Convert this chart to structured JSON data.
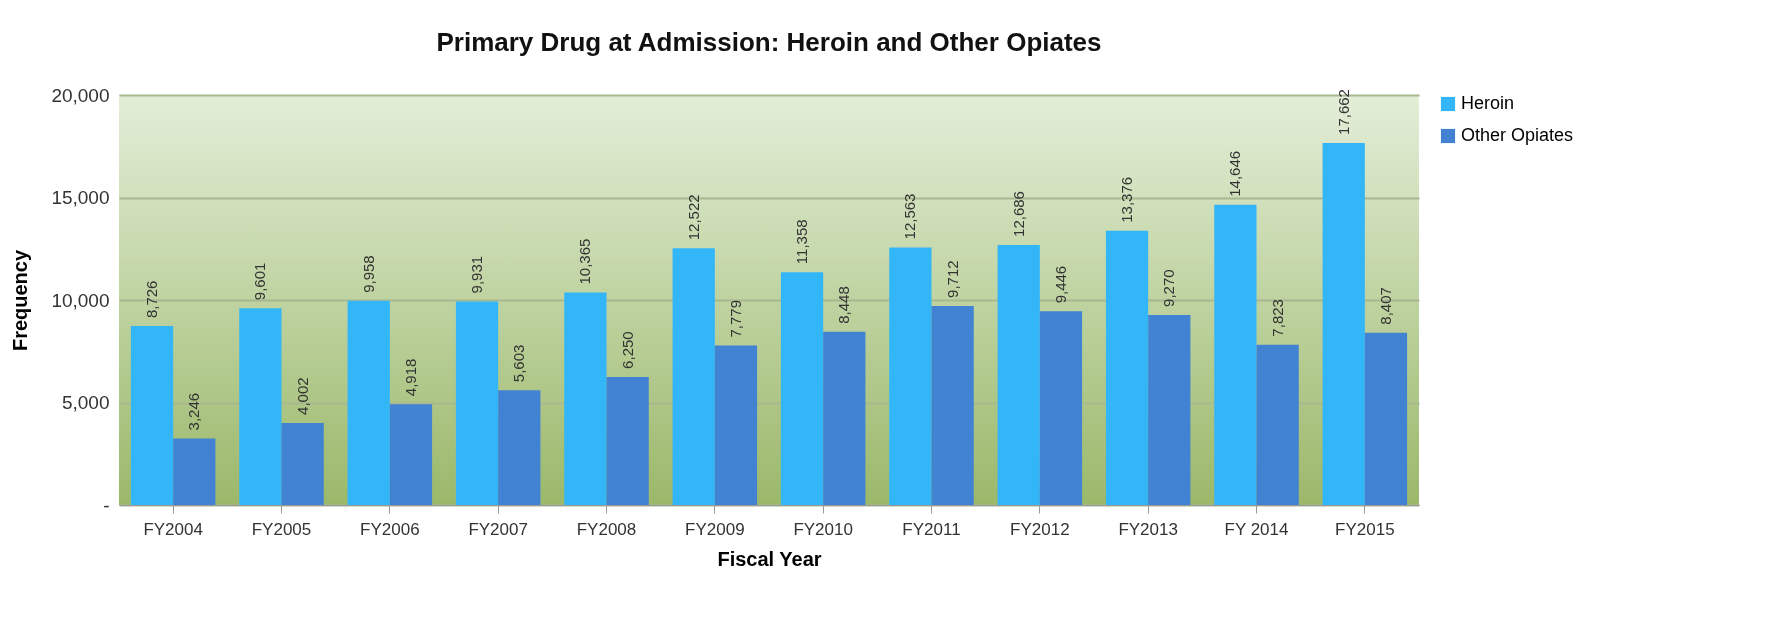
{
  "chart_data": {
    "type": "bar",
    "title": "Primary Drug at Admission:  Heroin and Other Opiates",
    "xlabel": "Fiscal Year",
    "ylabel": "Frequency",
    "categories": [
      "FY2004",
      "FY2005",
      "FY2006",
      "FY2007",
      "FY2008",
      "FY2009",
      "FY2010",
      "FY2011",
      "FY2012",
      "FY2013",
      "FY 2014",
      "FY2015"
    ],
    "series": [
      {
        "name": "Heroin",
        "color": "#33b6f7",
        "values": [
          8726,
          9601,
          9958,
          9931,
          10365,
          12522,
          11358,
          12563,
          12686,
          13376,
          14646,
          17662
        ],
        "value_labels": [
          "8,726",
          "9,601",
          "9,958",
          "9,931",
          "10,365",
          "12,522",
          "11,358",
          "12,563",
          "12,686",
          "13,376",
          "14,646",
          "17,662"
        ]
      },
      {
        "name": "Other Opiates",
        "color": "#4182d2",
        "values": [
          3246,
          4002,
          4918,
          5603,
          6250,
          7779,
          8448,
          9712,
          9446,
          9270,
          7823,
          8407
        ],
        "value_labels": [
          "3,246",
          "4,002",
          "4,918",
          "5,603",
          "6,250",
          "7,779",
          "8,448",
          "9,712",
          "9,446",
          "9,270",
          "7,823",
          "8,407"
        ]
      }
    ],
    "ylim": [
      0,
      20000
    ],
    "yticks": [
      {
        "value": 0,
        "label": "-"
      },
      {
        "value": 5000,
        "label": "5,000"
      },
      {
        "value": 10000,
        "label": "10,000"
      },
      {
        "value": 15000,
        "label": "15,000"
      },
      {
        "value": 20000,
        "label": "20,000"
      }
    ],
    "grid": "y",
    "legend": "right"
  }
}
